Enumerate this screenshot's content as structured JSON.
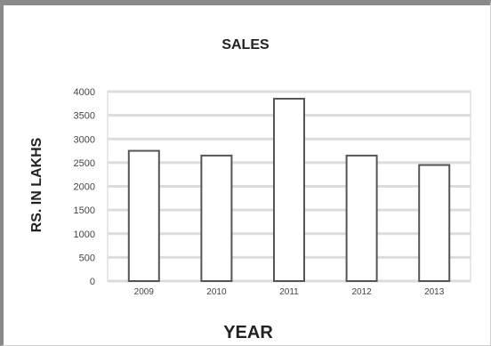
{
  "chart_data": {
    "type": "bar",
    "title": "SALES",
    "xlabel": "YEAR",
    "ylabel": "RS. IN LAKHS",
    "categories": [
      "2009",
      "2010",
      "2011",
      "2012",
      "2013"
    ],
    "values": [
      2750,
      2650,
      3850,
      2650,
      2450
    ],
    "ylim": [
      0,
      4000
    ],
    "yticks": [
      0,
      500,
      1000,
      1500,
      2000,
      2500,
      3000,
      3500,
      4000
    ],
    "grid": true,
    "legend": "none",
    "colors": {
      "bar_fill": "#ffffff",
      "bar_stroke": "#555555",
      "grid": "#dcdcdc",
      "plot_border": "#cfcfcf"
    }
  }
}
